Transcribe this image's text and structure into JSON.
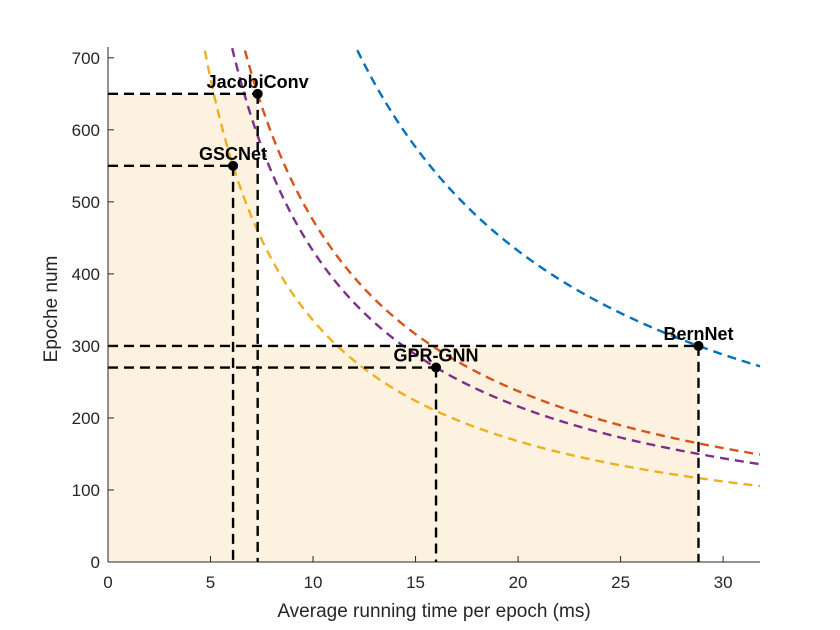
{
  "chart_data": {
    "type": "scatter",
    "title": "",
    "xlabel": "Average running time per epoch (ms)",
    "ylabel": "Epoche num",
    "xlim": [
      0,
      31.8
    ],
    "ylim": [
      0,
      715
    ],
    "xticks": [
      0,
      5,
      10,
      15,
      20,
      25,
      30
    ],
    "yticks": [
      0,
      100,
      200,
      300,
      400,
      500,
      600,
      700
    ],
    "grid": false,
    "points": [
      {
        "name": "JacobiConv",
        "x": 7.3,
        "y": 650
      },
      {
        "name": "GSCNet",
        "x": 6.1,
        "y": 550
      },
      {
        "name": "GPR-GNN",
        "x": 16.0,
        "y": 270
      },
      {
        "name": "BernNet",
        "x": 28.8,
        "y": 300
      }
    ],
    "curves": [
      {
        "label": "blue",
        "color": "#0072BD",
        "k": 8640
      },
      {
        "label": "red",
        "color": "#D95319",
        "k": 4745
      },
      {
        "label": "purple",
        "color": "#7E2F8E",
        "k": 4320
      },
      {
        "label": "yellow",
        "color": "#EDB120",
        "k": 3355
      }
    ],
    "area_color": "#FDF2DF"
  }
}
